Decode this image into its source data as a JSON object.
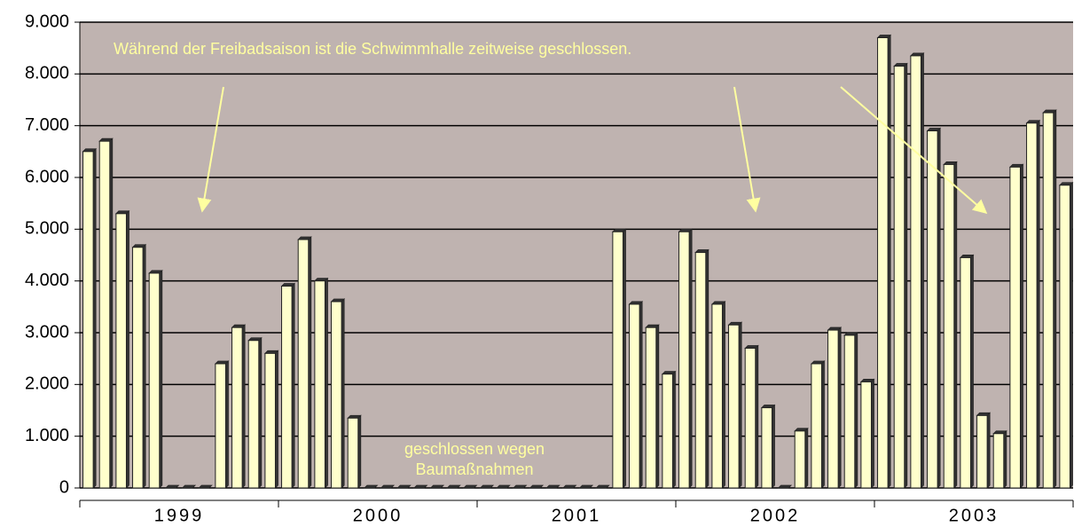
{
  "chart_data": {
    "type": "bar",
    "categories": [
      null,
      null,
      null,
      null,
      null,
      null,
      null,
      null,
      null,
      null,
      null,
      null,
      null,
      null,
      null,
      null,
      null,
      null,
      null,
      null,
      null,
      null,
      null,
      null,
      null,
      null,
      null,
      null,
      null,
      null,
      null,
      null,
      null,
      null,
      null,
      null,
      null,
      null,
      null,
      null,
      null,
      null,
      null,
      null,
      null,
      null,
      null,
      null,
      null,
      null,
      null,
      null,
      null,
      null,
      null,
      null,
      null,
      null,
      null,
      null
    ],
    "values": [
      6500,
      6700,
      5300,
      4650,
      4150,
      0,
      0,
      0,
      2400,
      3100,
      2850,
      2600,
      3900,
      4800,
      4000,
      3600,
      1350,
      0,
      0,
      0,
      0,
      0,
      0,
      0,
      0,
      0,
      0,
      0,
      0,
      0,
      0,
      0,
      4950,
      3550,
      3100,
      2200,
      4950,
      4550,
      3550,
      3150,
      2700,
      1550,
      0,
      1100,
      2400,
      3050,
      2950,
      2050,
      8700,
      8150,
      8350,
      6900,
      6250,
      4450,
      1400,
      1050,
      6200,
      7050,
      7250,
      5850
    ],
    "year_labels": [
      "1999",
      "2000",
      "2001",
      "2002",
      "2003"
    ],
    "color": "#ffffcc",
    "background": "#bfb3b0",
    "ylim": [
      0,
      9000
    ],
    "yticks": [
      0,
      {
        "value": 1000,
        "label": "1.000"
      },
      {
        "value": 2000,
        "label": "2.000"
      },
      {
        "value": 3000,
        "label": "3.000"
      },
      {
        "value": 4000,
        "label": "4.000"
      },
      {
        "value": 5000,
        "label": "5.000"
      },
      {
        "value": 6000,
        "label": "6.000"
      },
      {
        "value": 7000,
        "label": "7.000"
      },
      {
        "value": 8000,
        "label": "8.000"
      },
      {
        "value": 9000,
        "label": "9.000"
      }
    ],
    "grid": true,
    "annotations": [
      "Während der Freibadsaison ist die Schwimmhalle zeitweise geschlossen.",
      "geschlossen wegen",
      "Baumaßnahmen"
    ]
  }
}
